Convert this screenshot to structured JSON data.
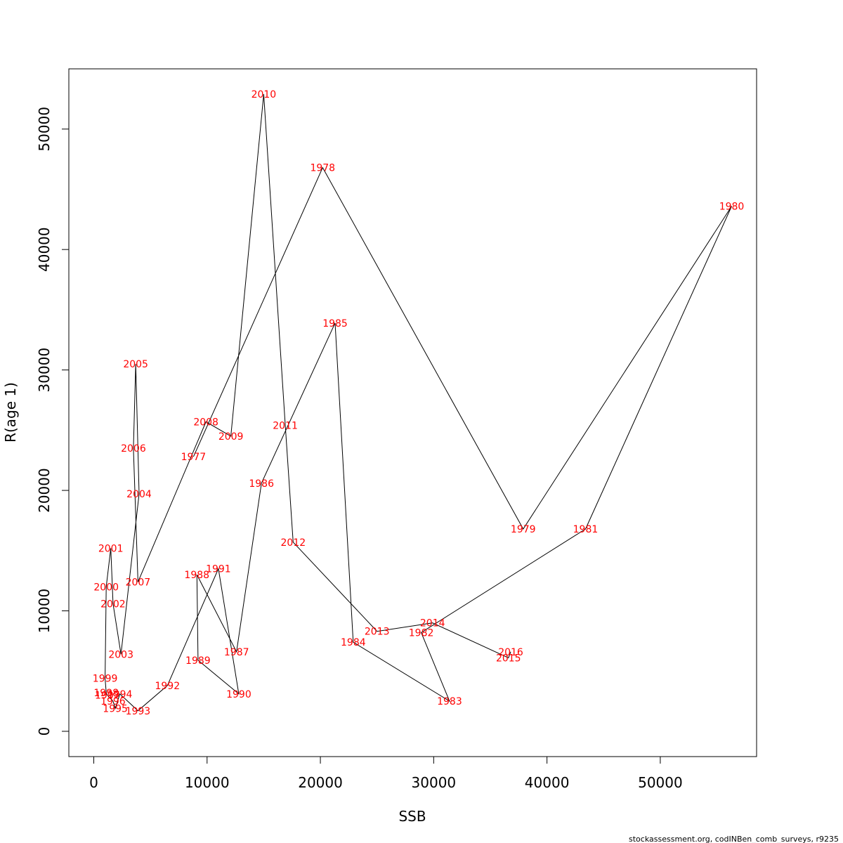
{
  "chart_data": {
    "type": "line",
    "xlabel": "SSB",
    "ylabel": "R(age 1)",
    "xlim": [
      -2200,
      58500
    ],
    "ylim": [
      -2100,
      55000
    ],
    "x_ticks": [
      0,
      10000,
      20000,
      30000,
      40000,
      50000
    ],
    "y_ticks": [
      0,
      10000,
      20000,
      30000,
      40000,
      50000
    ],
    "grid": false,
    "line_color": "#000000",
    "label_color": "#ff0000",
    "points": [
      {
        "label": "1977",
        "x": 8800,
        "y": 22800
      },
      {
        "label": "1978",
        "x": 20200,
        "y": 46800
      },
      {
        "label": "1979",
        "x": 37900,
        "y": 16800
      },
      {
        "label": "1980",
        "x": 56300,
        "y": 43600
      },
      {
        "label": "1981",
        "x": 43400,
        "y": 16800
      },
      {
        "label": "1982",
        "x": 28900,
        "y": 8200
      },
      {
        "label": "1983",
        "x": 31400,
        "y": 2500
      },
      {
        "label": "1984",
        "x": 22900,
        "y": 7400
      },
      {
        "label": "1985",
        "x": 21300,
        "y": 33900
      },
      {
        "label": "1986",
        "x": 14800,
        "y": 20600
      },
      {
        "label": "1987",
        "x": 12600,
        "y": 6600
      },
      {
        "label": "1988",
        "x": 9100,
        "y": 13000
      },
      {
        "label": "1989",
        "x": 9200,
        "y": 5900
      },
      {
        "label": "1990",
        "x": 12800,
        "y": 3100
      },
      {
        "label": "1991",
        "x": 11000,
        "y": 13500
      },
      {
        "label": "1992",
        "x": 6500,
        "y": 3800
      },
      {
        "label": "1993",
        "x": 3900,
        "y": 1700
      },
      {
        "label": "1994",
        "x": 2300,
        "y": 3100
      },
      {
        "label": "1995",
        "x": 1900,
        "y": 1900
      },
      {
        "label": "1996",
        "x": 1700,
        "y": 2500
      },
      {
        "label": "1997",
        "x": 1200,
        "y": 3000
      },
      {
        "label": "1998",
        "x": 1100,
        "y": 3200
      },
      {
        "label": "1999",
        "x": 1000,
        "y": 4400
      },
      {
        "label": "2000",
        "x": 1100,
        "y": 12000
      },
      {
        "label": "2001",
        "x": 1500,
        "y": 15200
      },
      {
        "label": "2002",
        "x": 1700,
        "y": 10600
      },
      {
        "label": "2003",
        "x": 2400,
        "y": 6400
      },
      {
        "label": "2004",
        "x": 4000,
        "y": 19700
      },
      {
        "label": "2005",
        "x": 3700,
        "y": 30500
      },
      {
        "label": "2006",
        "x": 3500,
        "y": 23500
      },
      {
        "label": "2007",
        "x": 3900,
        "y": 12400
      },
      {
        "label": "2008",
        "x": 9900,
        "y": 25700
      },
      {
        "label": "2009",
        "x": 12100,
        "y": 24500
      },
      {
        "label": "2010",
        "x": 15000,
        "y": 52900
      },
      {
        "label": "2011",
        "x": 16900,
        "y": 25400
      },
      {
        "label": "2012",
        "x": 17600,
        "y": 15700
      },
      {
        "label": "2013",
        "x": 25000,
        "y": 8300
      },
      {
        "label": "2014",
        "x": 29900,
        "y": 9000
      },
      {
        "label": "2015",
        "x": 36600,
        "y": 6100
      },
      {
        "label": "2016",
        "x": 36800,
        "y": 6600
      }
    ]
  },
  "footnote": "stockassessment.org, codINBen_comb_surveys, r9235"
}
